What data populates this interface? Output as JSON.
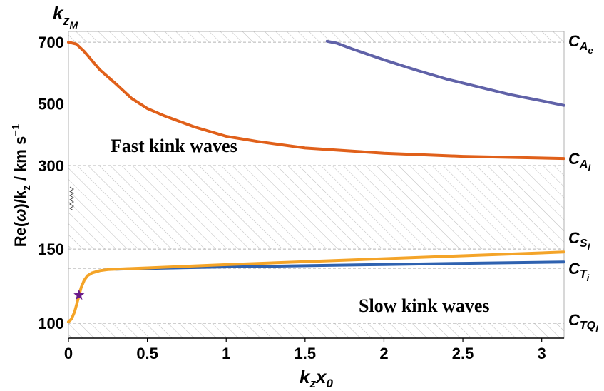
{
  "chart_data": {
    "type": "line",
    "xlabel": {
      "main": "k",
      "sub1": "z",
      "main2": "x",
      "sub2": "0"
    },
    "ylabel": "Re(ω)/kₓ / km s⁻¹",
    "ylabel_parts": {
      "pre": "Re(",
      "omega": "ω",
      "mid": ")/k",
      "sub": "z",
      "post": " / km s",
      "sup": "−1"
    },
    "ytitle": {
      "main": "k",
      "sub": "z",
      "subsub": "M"
    },
    "x_ticks": [
      "0",
      "0.5",
      "1",
      "1.5",
      "2",
      "2.5",
      "3"
    ],
    "x_tick_values": [
      0,
      0.5,
      1,
      1.5,
      2,
      2.5,
      3
    ],
    "y_ticks": [
      "700",
      "500",
      "300",
      "150",
      "100"
    ],
    "xlim": [
      0,
      3.1416
    ],
    "upper_scale": {
      "ylim": [
        270,
        735
      ],
      "ticks": [
        700,
        500,
        300
      ]
    },
    "lower_scale": {
      "ylim": [
        90,
        200
      ],
      "ticks": [
        150,
        100
      ]
    },
    "annotations": [
      "Fast kink waves",
      "Slow kink waves"
    ],
    "right_labels": [
      {
        "id": "cae",
        "main": "C",
        "sub": "A",
        "subsub": "e",
        "value": 700
      },
      {
        "id": "cai",
        "main": "C",
        "sub": "A",
        "subsub": "i",
        "value": 300
      },
      {
        "id": "csi",
        "main": "C",
        "sub": "S",
        "subsub": "i",
        "value": 150
      },
      {
        "id": "cti",
        "main": "C",
        "sub": "T",
        "subsub": "i",
        "value": 137
      },
      {
        "id": "ctqi",
        "main": "C",
        "sub": "TQ",
        "subsub": "i",
        "value": 100
      }
    ],
    "series": [
      {
        "color": "#e0601a",
        "scale": "upper",
        "x": [
          0,
          0.05,
          0.1,
          0.2,
          0.3,
          0.4,
          0.5,
          0.6,
          0.8,
          1.0,
          1.2,
          1.5,
          2.0,
          2.5,
          3.14
        ],
        "y": [
          700,
          694,
          670,
          610,
          565,
          518,
          485,
          463,
          425,
          395,
          378,
          357,
          340,
          330,
          323
        ]
      },
      {
        "color": "#6062a8",
        "scale": "upper",
        "x": [
          1.64,
          1.7,
          1.8,
          2.0,
          2.2,
          2.4,
          2.6,
          2.8,
          3.0,
          3.14
        ],
        "y": [
          703,
          697,
          678,
          643,
          610,
          580,
          555,
          530,
          510,
          495
        ]
      },
      {
        "color": "#2f62b0",
        "scale": "lower",
        "x": [
          0.3,
          0.5,
          1.0,
          1.5,
          2.0,
          2.5,
          3.14
        ],
        "y": [
          136.5,
          137,
          138,
          138.8,
          139.6,
          140.4,
          141.3
        ]
      },
      {
        "color": "#f4a428",
        "scale": "lower",
        "x": [
          0,
          0.02,
          0.04,
          0.06,
          0.08,
          0.1,
          0.12,
          0.15,
          0.2,
          0.25,
          0.3,
          0.5,
          1.0,
          1.5,
          2.0,
          2.5,
          3.14
        ],
        "y": [
          101,
          103,
          108,
          116,
          124,
          129,
          132,
          134,
          135.5,
          136.2,
          136.5,
          137.3,
          139.5,
          141.5,
          143.5,
          145.5,
          148
        ]
      }
    ],
    "marker": {
      "x": 0.067,
      "y": 119,
      "scale": "lower",
      "color": "#6a1a8a",
      "shape": "star"
    },
    "hatched_bands": [
      {
        "scale": "upper",
        "from": 700,
        "to": 735
      },
      {
        "scale": "upper",
        "from": 270,
        "to": 300
      },
      {
        "scale": "lower",
        "from": 150,
        "to": 200
      },
      {
        "scale": "lower",
        "from": 90,
        "to": 100
      }
    ],
    "dashed_reference_lines": [
      {
        "scale": "upper",
        "y": 700
      },
      {
        "scale": "upper",
        "y": 300
      },
      {
        "scale": "lower",
        "y": 150
      },
      {
        "scale": "lower",
        "y": 137
      },
      {
        "scale": "lower",
        "y": 100
      }
    ],
    "axis_break": true,
    "grid": false,
    "legend": "none"
  }
}
